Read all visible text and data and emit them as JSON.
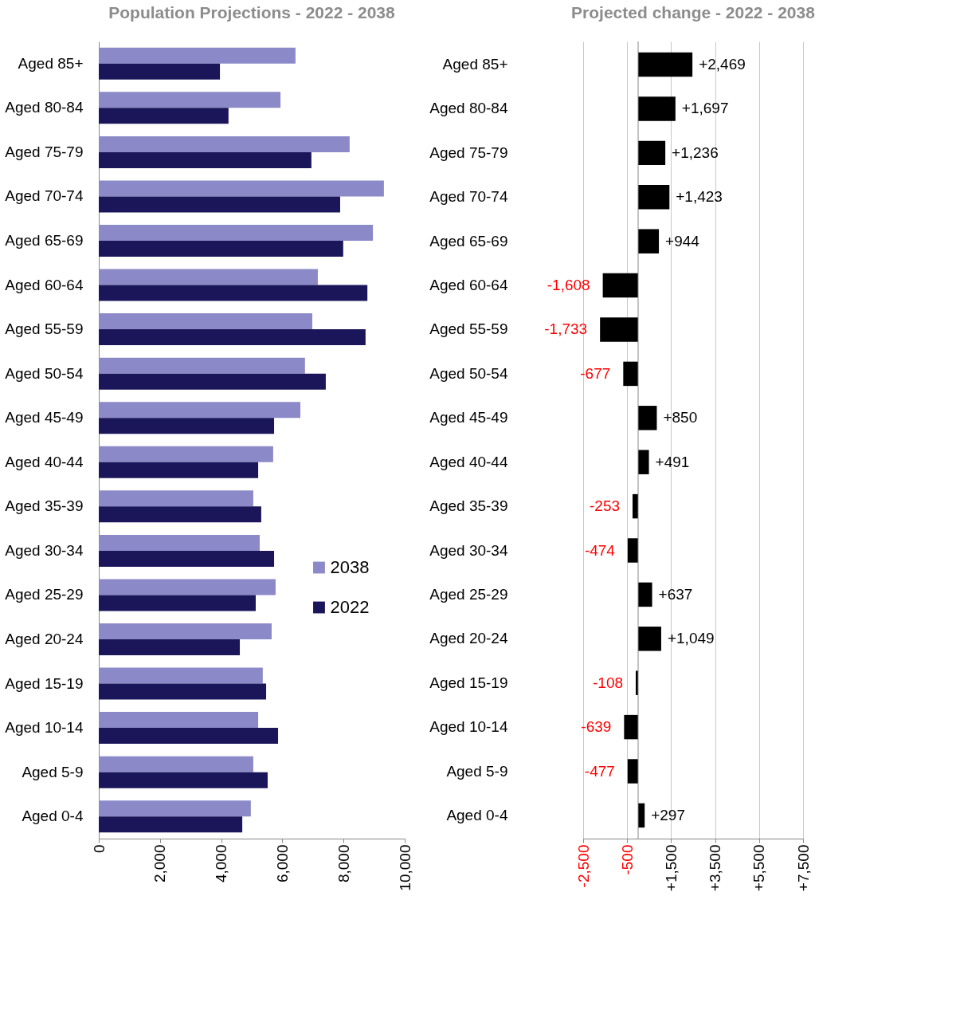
{
  "chart_data": [
    {
      "type": "bar",
      "orientation": "horizontal",
      "title": "Population Projections - 2022 - 2038",
      "categories": [
        "Aged 85+",
        "Aged 80-84",
        "Aged 75-79",
        "Aged 70-74",
        "Aged 65-69",
        "Aged 60-64",
        "Aged 55-59",
        "Aged 50-54",
        "Aged 45-49",
        "Aged 40-44",
        "Aged 35-39",
        "Aged 30-34",
        "Aged 25-29",
        "Aged 20-24",
        "Aged 15-19",
        "Aged 10-14",
        "Aged 5-9",
        "Aged 0-4"
      ],
      "series": [
        {
          "name": "2038",
          "color": "#8b89c8",
          "values": [
            6430,
            5940,
            8200,
            9320,
            8960,
            7160,
            6980,
            6740,
            6590,
            5700,
            5050,
            5260,
            5780,
            5650,
            5360,
            5210,
            5050,
            4970
          ]
        },
        {
          "name": "2022",
          "color": "#1a1659",
          "values": [
            3960,
            4240,
            6950,
            7890,
            7990,
            8780,
            8720,
            7420,
            5730,
            5210,
            5310,
            5730,
            5130,
            4610,
            5470,
            5860,
            5520,
            4690
          ]
        }
      ],
      "xlim": [
        0,
        10000
      ],
      "xticks": [
        0,
        {
          "value": 2000,
          "label": "2,000"
        },
        {
          "value": 4000,
          "label": "4,000"
        },
        {
          "value": 6000,
          "label": "6,000"
        },
        {
          "value": 8000,
          "label": "8,000"
        },
        {
          "value": 10000,
          "label": "10,000"
        }
      ],
      "legend": "right",
      "grid": false
    },
    {
      "type": "bar",
      "orientation": "horizontal",
      "title": "Projected change - 2022 - 2038",
      "categories": [
        "Aged 85+",
        "Aged 80-84",
        "Aged 75-79",
        "Aged 70-74",
        "Aged 65-69",
        "Aged 60-64",
        "Aged 55-59",
        "Aged 50-54",
        "Aged 45-49",
        "Aged 40-44",
        "Aged 35-39",
        "Aged 30-34",
        "Aged 25-29",
        "Aged 20-24",
        "Aged 15-19",
        "Aged 10-14",
        "Aged 5-9",
        "Aged 0-4"
      ],
      "color": "#000000",
      "values": [
        2469,
        1697,
        1236,
        1423,
        944,
        -1608,
        -1733,
        -677,
        850,
        491,
        -253,
        -474,
        637,
        1049,
        -108,
        -639,
        -477,
        297
      ],
      "value_labels": [
        "+2,469",
        "+1,697",
        "+1,236",
        "+1,423",
        "+944",
        "-1,608",
        "-1,733",
        "-677",
        "+850",
        "+491",
        "-253",
        "-474",
        "+637",
        "+1,049",
        "-108",
        "-639",
        "-477",
        "+297"
      ],
      "xlim": [
        -2500,
        7500
      ],
      "xticks": [
        {
          "value": -2500,
          "label": "-2,500"
        },
        {
          "value": -500,
          "label": "-500"
        },
        {
          "value": 1500,
          "label": "+1,500"
        },
        {
          "value": 3500,
          "label": "+3,500"
        },
        {
          "value": 5500,
          "label": "+5,500"
        },
        {
          "value": 7500,
          "label": "+7,500"
        }
      ],
      "grid": "x"
    }
  ]
}
